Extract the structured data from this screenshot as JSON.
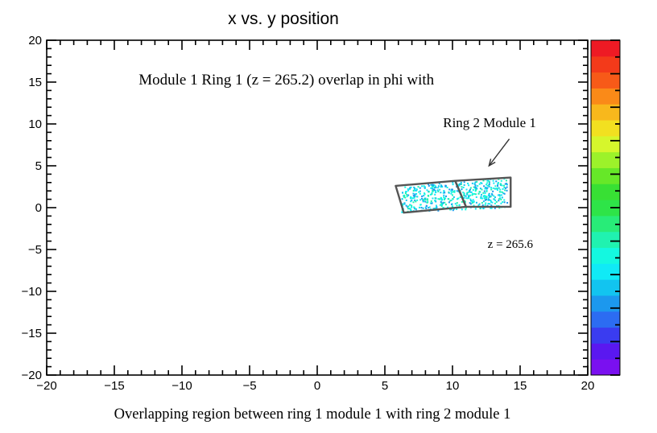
{
  "chart_data": {
    "type": "heatmap",
    "title": "x vs. y position",
    "xlabel": "",
    "ylabel": "",
    "xlim": [
      -20,
      20
    ],
    "ylim": [
      -20,
      20
    ],
    "x_ticks": [
      -20,
      -15,
      -10,
      -5,
      0,
      5,
      10,
      15,
      20
    ],
    "y_ticks": [
      -20,
      -15,
      -10,
      -5,
      0,
      5,
      10,
      15,
      20
    ],
    "x_tick_labels": [
      "−20",
      "−15",
      "−10",
      "−5",
      "0",
      "5",
      "10",
      "15",
      "20"
    ],
    "y_tick_labels": [
      "−20",
      "−15",
      "−10",
      "−5",
      "0",
      "5",
      "10",
      "15",
      "20"
    ],
    "palette": [
      "#7a10f0",
      "#5a18f0",
      "#3a3cf0",
      "#2c6cf2",
      "#1c98ee",
      "#12c4f0",
      "#10eaf6",
      "#14f8e0",
      "#20f2b0",
      "#28ec78",
      "#2ee448",
      "#38e034",
      "#66e828",
      "#9cf22a",
      "#d6f62c",
      "#f2e020",
      "#f8b81c",
      "#fa8a18",
      "#f75a18",
      "#f33a1a",
      "#ee1a24"
    ],
    "annotations": [
      {
        "text": "Module 1 Ring 1 (z = 265.2) overlap in phi with",
        "x": -13.2,
        "y": 14.7
      },
      {
        "text": "Ring 2 Module 1",
        "x": 9.3,
        "y": 9.6
      },
      {
        "text": "z = 265.6",
        "x": 12.6,
        "y": -4.8
      }
    ],
    "arrow": {
      "from": [
        14.2,
        8.2
      ],
      "to": [
        12.7,
        5.0
      ]
    },
    "module_outlines": [
      [
        [
          5.8,
          2.6
        ],
        [
          10.2,
          3.2
        ],
        [
          11.0,
          0.1
        ],
        [
          6.4,
          -0.6
        ]
      ],
      [
        [
          10.2,
          3.2
        ],
        [
          14.3,
          3.6
        ],
        [
          14.3,
          0.1
        ],
        [
          11.0,
          0.1
        ]
      ]
    ],
    "hit_region": {
      "x_range": [
        6.2,
        14.0
      ],
      "y_range": [
        -0.3,
        3.2
      ]
    }
  },
  "caption": "Overlapping region between ring 1 module 1 with ring 2 module 1"
}
